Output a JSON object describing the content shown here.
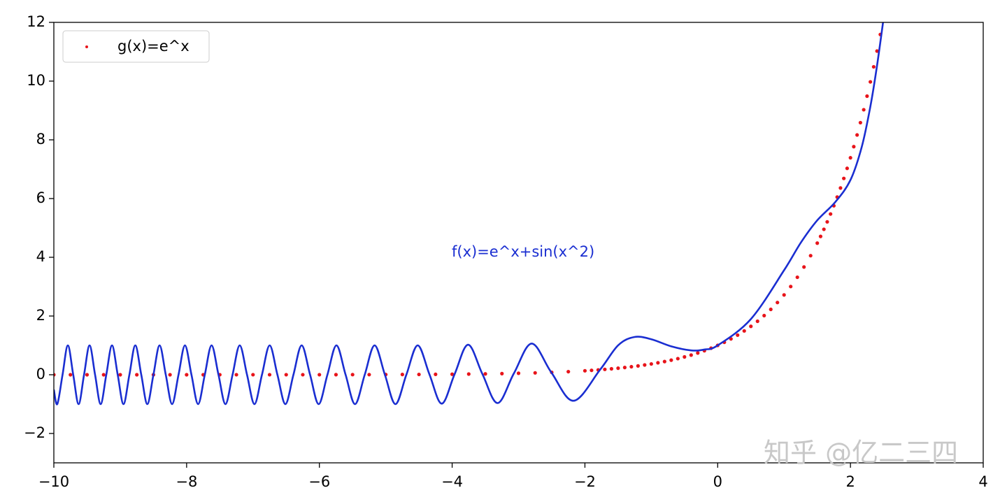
{
  "chart_data": {
    "type": "line",
    "annotation": "f(x)=e^x+sin(x^2)",
    "watermark": "知乎 @亿二三四",
    "xlim": [
      -10,
      4
    ],
    "ylim": [
      -3,
      12
    ],
    "xticks": [
      {
        "value": -10,
        "label": "−10"
      },
      {
        "value": -8,
        "label": "−8"
      },
      {
        "value": -6,
        "label": "−6"
      },
      {
        "value": -4,
        "label": "−4"
      },
      {
        "value": -2,
        "label": "−2"
      },
      0,
      2,
      4
    ],
    "yticks": [
      {
        "value": -2,
        "label": "−2"
      },
      0,
      2,
      4,
      6,
      8,
      10,
      12
    ],
    "legend": "upper left",
    "series": [
      {
        "type": "line",
        "color": "#1a2ed1",
        "x": [
          -10,
          -9.948,
          -9.869,
          -9.789,
          -9.708,
          -9.627,
          -9.545,
          -9.462,
          -9.379,
          -9.295,
          -9.21,
          -9.124,
          -9.038,
          -8.951,
          -8.862,
          -8.773,
          -8.683,
          -8.592,
          -8.5,
          -8.407,
          -8.314,
          -8.219,
          -8.122,
          -8.025,
          -7.927,
          -7.827,
          -7.726,
          -7.624,
          -7.52,
          -7.415,
          -7.308,
          -7.2,
          -7.09,
          -6.978,
          -6.865,
          -6.749,
          -6.632,
          -6.512,
          -6.391,
          -6.267,
          -6.14,
          -6.011,
          -5.879,
          -5.743,
          -5.605,
          -5.463,
          -5.317,
          -5.168,
          -5.013,
          -4.854,
          -4.69,
          -4.519,
          -4.342,
          -4.157,
          -3.963,
          -3.76,
          -3.545,
          -3.316,
          -3.07,
          -2.802,
          -2.507,
          -2.171,
          -1.772,
          -1.5,
          -1.253,
          -1.0,
          -0.7,
          -0.4,
          -0.2,
          0,
          0.5,
          1.0,
          1.253,
          1.5,
          1.772,
          2.0,
          2.171,
          2.3,
          2.4,
          2.507
        ],
        "values": [
          -0.506,
          -1,
          0,
          1,
          0,
          -1,
          0,
          1,
          0,
          -1,
          0,
          1,
          0,
          -1,
          0,
          1,
          0,
          -1,
          0,
          1,
          0,
          -1,
          0,
          1,
          0,
          -1,
          0,
          1,
          0,
          -1,
          0,
          1,
          0,
          -1,
          0,
          1,
          0,
          -1,
          0,
          1,
          0,
          -1,
          0,
          1,
          0,
          -1,
          0,
          1,
          0,
          -1,
          0,
          1,
          0.013,
          -0.984,
          0.019,
          1.023,
          0.029,
          -0.964,
          0.046,
          1.061,
          0.082,
          -0.886,
          0.17,
          1.001,
          1.286,
          1.209,
          0.968,
          0.829,
          0.859,
          1,
          1.896,
          3.559,
          4.501,
          5.26,
          5.883,
          6.632,
          7.767,
          9.136,
          10.522,
          12.27
        ]
      },
      {
        "type": "scatter",
        "name": "g(x)=e^x",
        "color": "#e8141a",
        "x": [
          -10,
          -9.75,
          -9.5,
          -9.25,
          -9,
          -8.75,
          -8.5,
          -8.25,
          -8,
          -7.75,
          -7.5,
          -7.25,
          -7,
          -6.75,
          -6.5,
          -6.25,
          -6,
          -5.75,
          -5.5,
          -5.25,
          -5,
          -4.75,
          -4.5,
          -4.25,
          -4,
          -3.75,
          -3.5,
          -3.25,
          -3,
          -2.75,
          -2.5,
          -2.25,
          -2,
          -1.9,
          -1.8,
          -1.7,
          -1.6,
          -1.5,
          -1.4,
          -1.3,
          -1.2,
          -1.1,
          -1.0,
          -0.9,
          -0.8,
          -0.7,
          -0.6,
          -0.5,
          -0.4,
          -0.3,
          -0.2,
          -0.1,
          0,
          0.1,
          0.2,
          0.3,
          0.4,
          0.5,
          0.6,
          0.7,
          0.8,
          0.9,
          1.0,
          1.1,
          1.2,
          1.3,
          1.4,
          1.5,
          1.55,
          1.6,
          1.65,
          1.7,
          1.75,
          1.8,
          1.85,
          1.9,
          1.95,
          2.0,
          2.05,
          2.1,
          2.15,
          2.2,
          2.25,
          2.3,
          2.35,
          2.4,
          2.45
        ],
        "values": [
          0,
          0,
          0,
          0,
          0,
          0,
          0,
          0,
          0,
          0,
          0.001,
          0.001,
          0.001,
          0.001,
          0.002,
          0.002,
          0.002,
          0.003,
          0.004,
          0.005,
          0.007,
          0.009,
          0.011,
          0.014,
          0.018,
          0.024,
          0.03,
          0.039,
          0.05,
          0.064,
          0.082,
          0.105,
          0.135,
          0.15,
          0.165,
          0.183,
          0.202,
          0.223,
          0.247,
          0.273,
          0.301,
          0.333,
          0.368,
          0.407,
          0.449,
          0.497,
          0.549,
          0.607,
          0.67,
          0.741,
          0.819,
          0.905,
          1,
          1.105,
          1.221,
          1.35,
          1.492,
          1.649,
          1.822,
          2.014,
          2.226,
          2.46,
          2.718,
          3.004,
          3.32,
          3.669,
          4.055,
          4.482,
          4.711,
          4.953,
          5.207,
          5.474,
          5.755,
          6.05,
          6.36,
          6.686,
          7.029,
          7.389,
          7.768,
          8.166,
          8.585,
          9.025,
          9.488,
          9.974,
          10.486,
          11.023,
          11.588
        ]
      }
    ]
  }
}
